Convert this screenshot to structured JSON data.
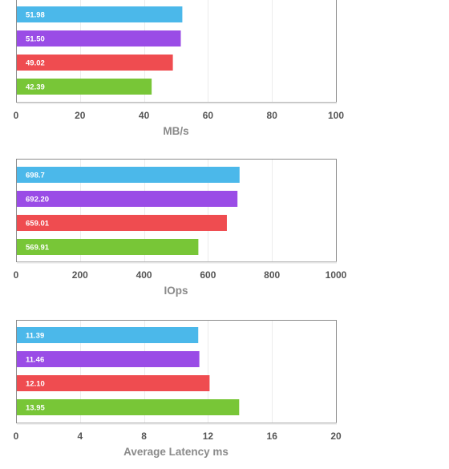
{
  "chart_data": [
    {
      "type": "bar",
      "orientation": "horizontal",
      "xlabel": "MB/s",
      "xlim": [
        0,
        100
      ],
      "ticks": [
        "0",
        "20",
        "40",
        "60",
        "80",
        "100"
      ],
      "bars": [
        {
          "value": 51.98,
          "label": "51.98",
          "color": "#4bb8ea"
        },
        {
          "value": 51.5,
          "label": "51.50",
          "color": "#9a4ce6"
        },
        {
          "value": 49.02,
          "label": "49.02",
          "color": "#ef4c50"
        },
        {
          "value": 42.39,
          "label": "42.39",
          "color": "#78c637"
        }
      ],
      "grid": true
    },
    {
      "type": "bar",
      "orientation": "horizontal",
      "xlabel": "IOps",
      "xlim": [
        0,
        1000
      ],
      "ticks": [
        "0",
        "200",
        "400",
        "600",
        "800",
        "1000"
      ],
      "bars": [
        {
          "value": 698.7,
          "label": "698.7",
          "color": "#4bb8ea"
        },
        {
          "value": 692.2,
          "label": "692.20",
          "color": "#9a4ce6"
        },
        {
          "value": 659.01,
          "label": "659.01",
          "color": "#ef4c50"
        },
        {
          "value": 569.91,
          "label": "569.91",
          "color": "#78c637"
        }
      ],
      "grid": true
    },
    {
      "type": "bar",
      "orientation": "horizontal",
      "xlabel": "Average Latency ms",
      "xlim": [
        0,
        20
      ],
      "ticks": [
        "0",
        "4",
        "8",
        "12",
        "16",
        "20"
      ],
      "bars": [
        {
          "value": 11.39,
          "label": "11.39",
          "color": "#4bb8ea"
        },
        {
          "value": 11.46,
          "label": "11.46",
          "color": "#9a4ce6"
        },
        {
          "value": 12.1,
          "label": "12.10",
          "color": "#ef4c50"
        },
        {
          "value": 13.95,
          "label": "13.95",
          "color": "#78c637"
        }
      ],
      "grid": true
    }
  ]
}
